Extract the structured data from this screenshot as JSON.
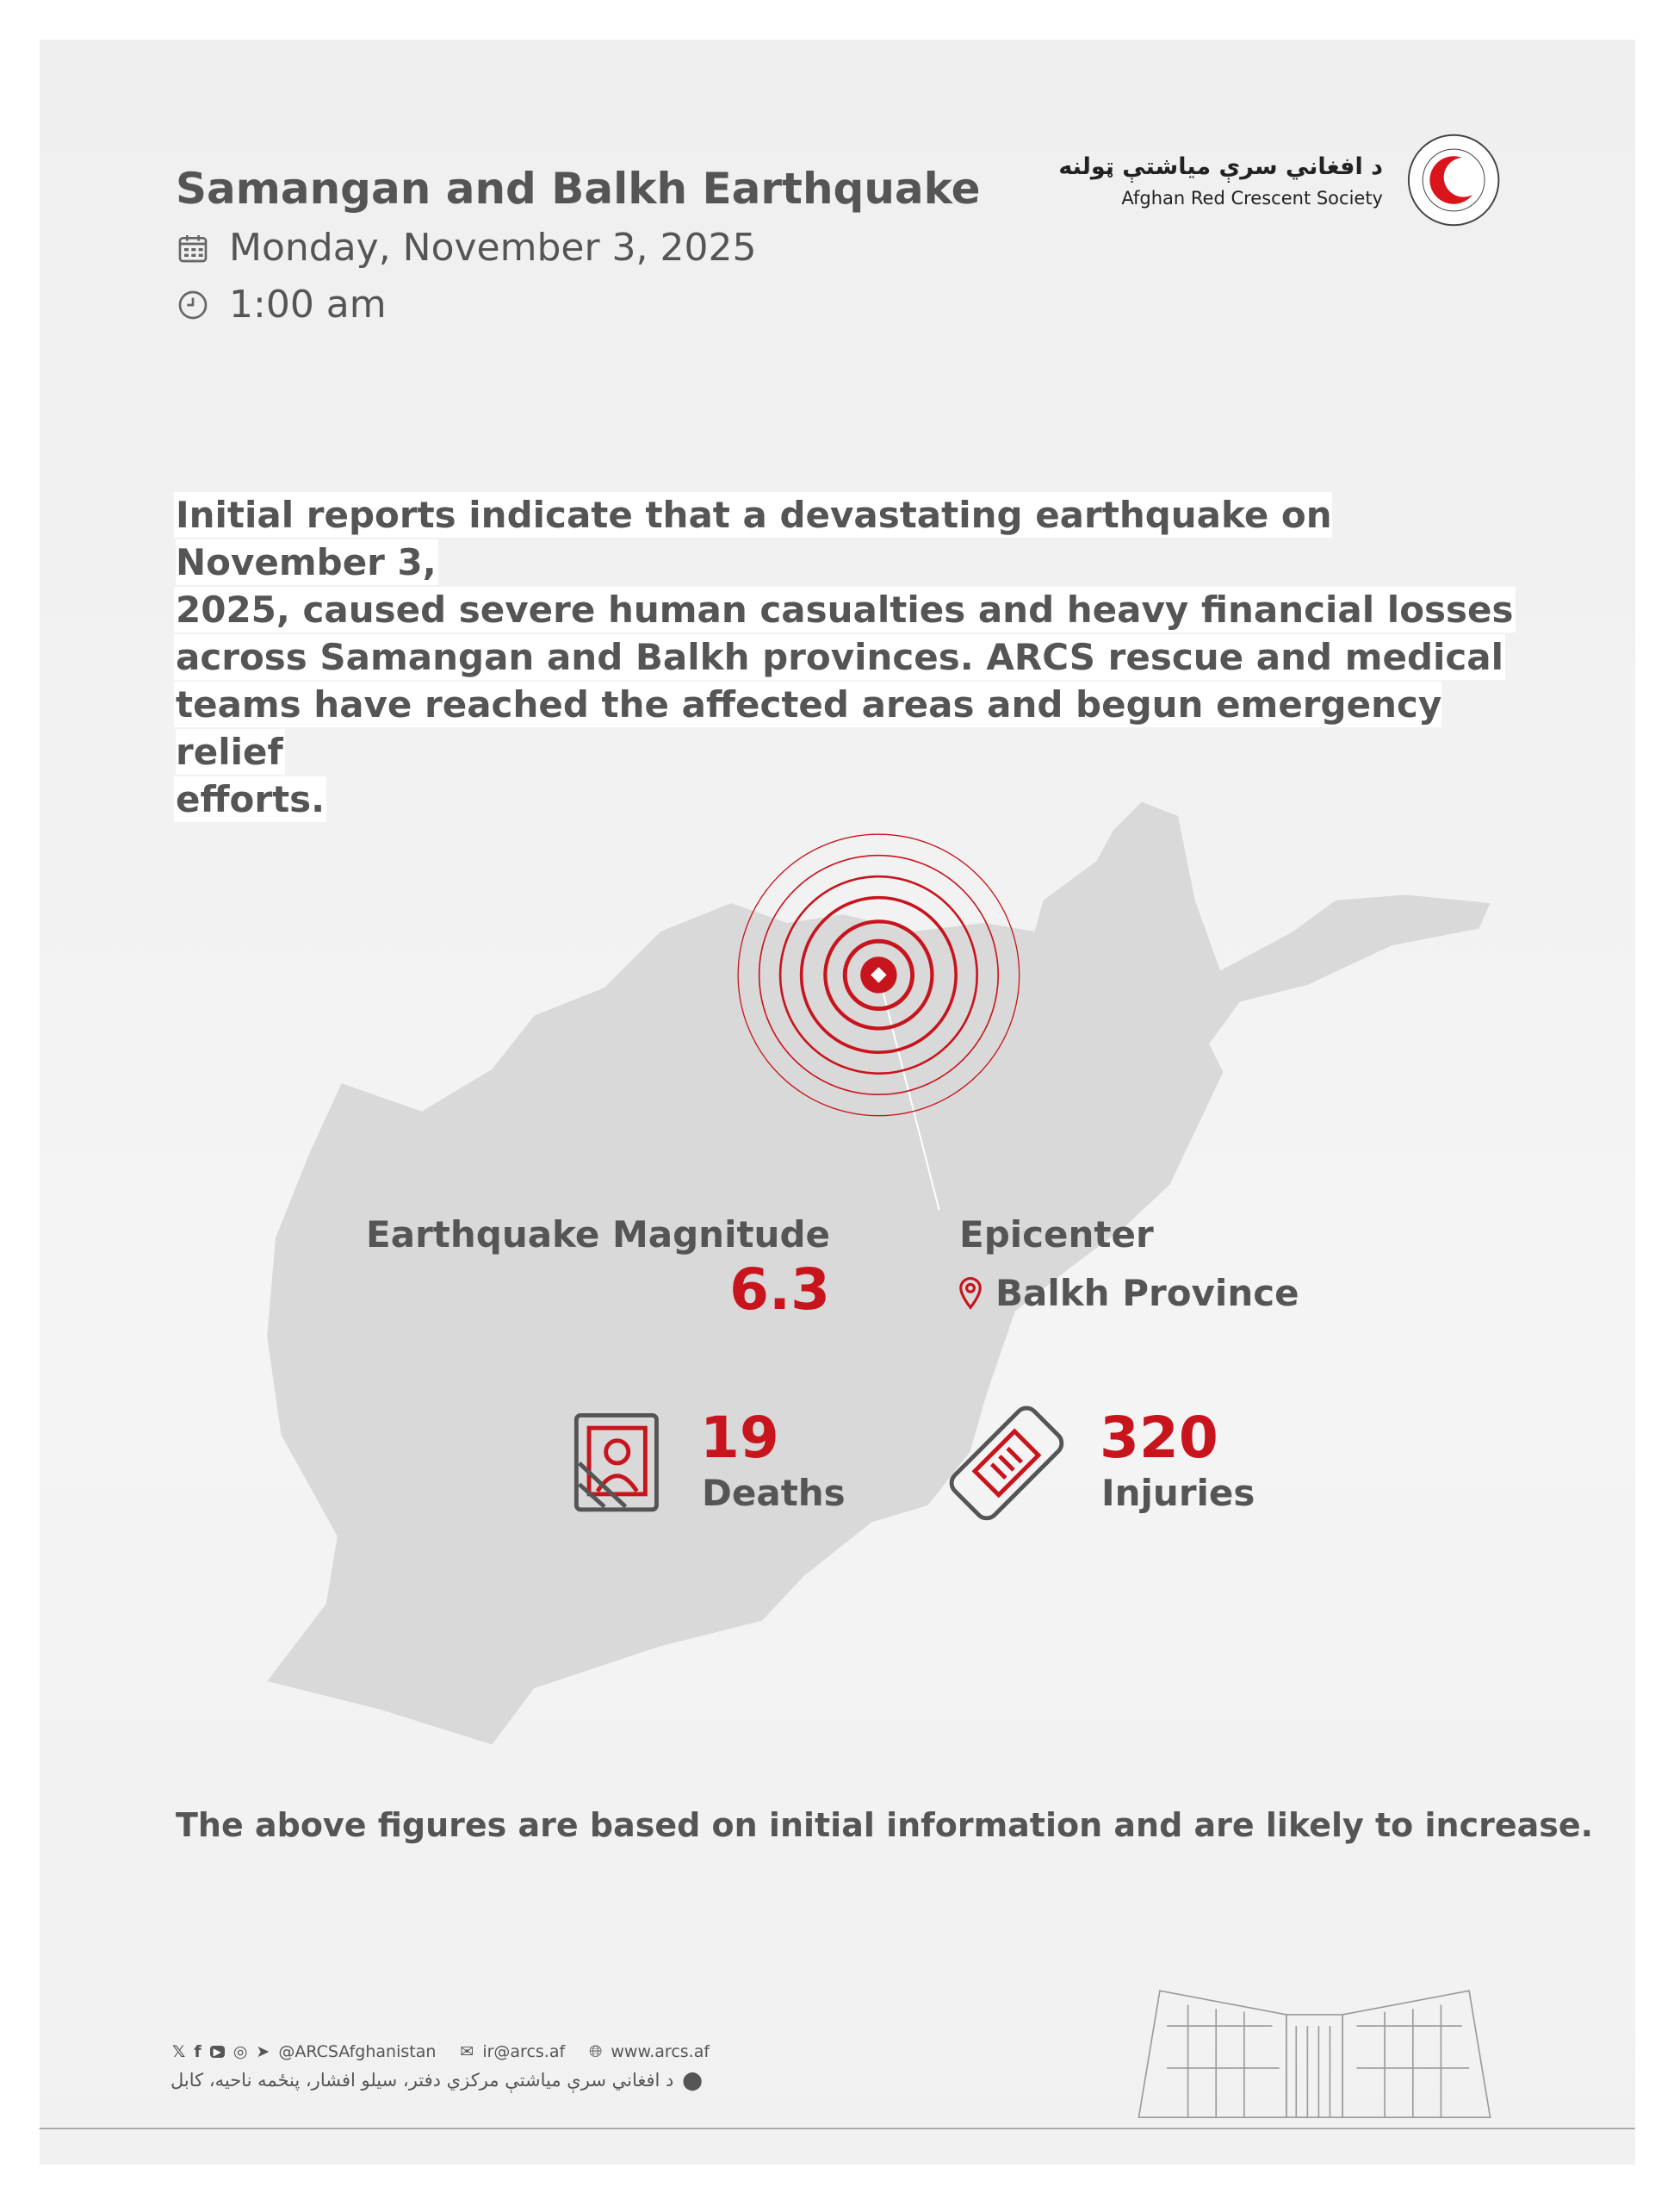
{
  "header": {
    "title": "Samangan and Balkh Earthquake",
    "date": "Monday, November 3, 2025",
    "time": "1:00 am",
    "logo": {
      "name_pashto": "د افغاني سرې مياشتې ټولنه",
      "name_english": "Afghan Red Crescent Society",
      "emblem_text": "د افغاني سري مياشتې ټولنه جمعیت هلال احمر افغانی"
    }
  },
  "intro": [
    "Initial reports indicate that a devastating earthquake on November 3,",
    "2025, caused severe human casualties and heavy financial losses",
    "across Samangan and Balkh provinces. ARCS rescue and medical",
    "teams have reached the affected areas and begun emergency relief",
    "efforts."
  ],
  "stats": {
    "magnitude_label": "Earthquake Magnitude",
    "magnitude_value": "6.3",
    "epicenter_label": "Epicenter",
    "epicenter_value": "Balkh Province",
    "deaths_value": "19",
    "deaths_label": "Deaths",
    "injuries_value": "320",
    "injuries_label": "Injuries"
  },
  "note": "The above figures are based on initial information and are likely to increase.",
  "footer": {
    "social_handle": "@ARCSAfghanistan",
    "email": "ir@arcs.af",
    "website": "www.arcs.af",
    "address": "د افغاني سرې مياشتې مرکزي دفتر، سيلو افشار، پنځمه ناحيه، کابل",
    "social_icons": [
      "x-icon",
      "facebook-icon",
      "youtube-icon",
      "instagram-icon",
      "telegram-icon"
    ]
  },
  "colors": {
    "accent": "#c8141c",
    "text": "#555555",
    "map": "#d9d9d9"
  }
}
